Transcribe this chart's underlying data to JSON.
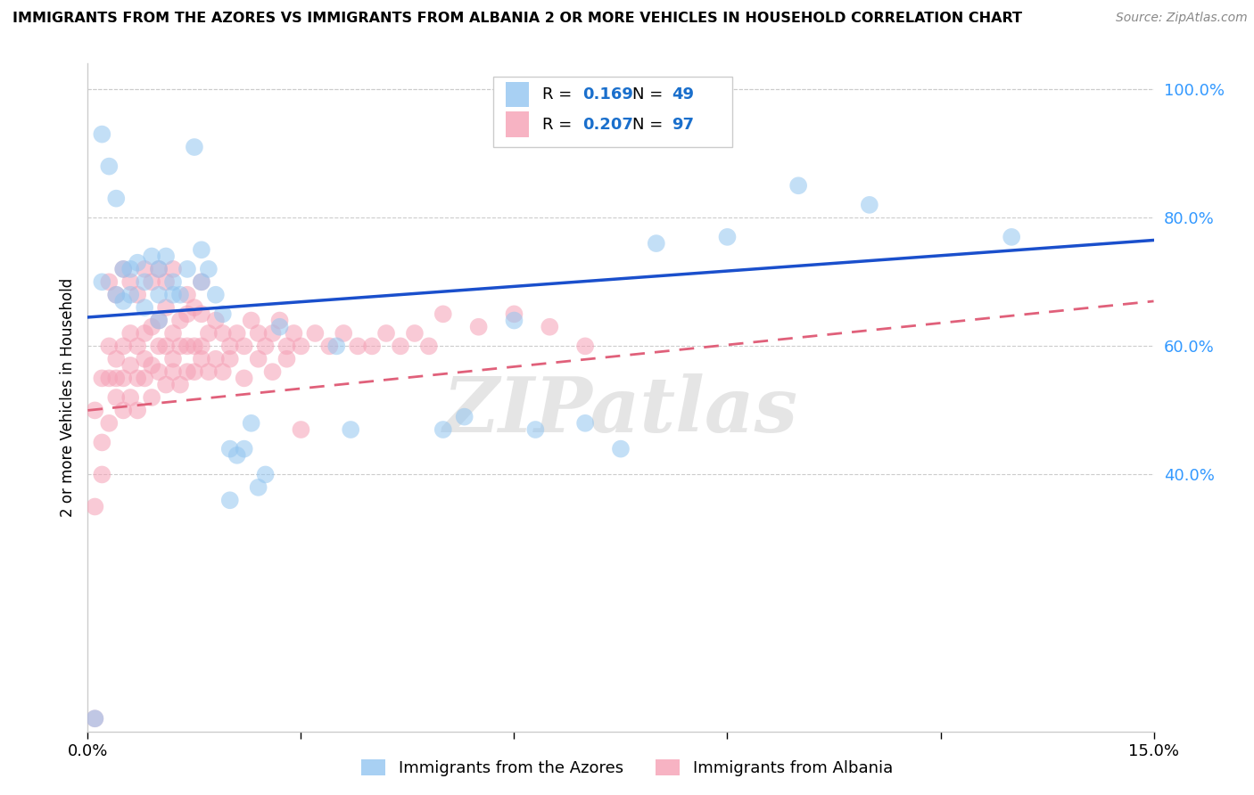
{
  "title": "IMMIGRANTS FROM THE AZORES VS IMMIGRANTS FROM ALBANIA 2 OR MORE VEHICLES IN HOUSEHOLD CORRELATION CHART",
  "source": "Source: ZipAtlas.com",
  "ylabel": "2 or more Vehicles in Household",
  "xmin": 0.0,
  "xmax": 0.15,
  "ymin": 0.0,
  "ymax": 1.0,
  "ytick_vals": [
    0.4,
    0.6,
    0.8,
    1.0
  ],
  "ytick_labels": [
    "40.0%",
    "60.0%",
    "80.0%",
    "100.0%"
  ],
  "xtick_vals": [
    0.0,
    0.03,
    0.06,
    0.09,
    0.12,
    0.15
  ],
  "xtick_labels": [
    "0.0%",
    "",
    "",
    "",
    "",
    "15.0%"
  ],
  "legend_azores": "Immigrants from the Azores",
  "legend_albania": "Immigrants from Albania",
  "R_azores": 0.169,
  "N_azores": 49,
  "R_albania": 0.207,
  "N_albania": 97,
  "color_azores": "#92C5F0",
  "color_albania": "#F5A0B5",
  "color_azores_line": "#1A4FCC",
  "color_albania_line": "#E0607A",
  "watermark": "ZIPatlas",
  "azores_x": [
    0.001,
    0.002,
    0.003,
    0.004,
    0.005,
    0.005,
    0.006,
    0.007,
    0.008,
    0.009,
    0.01,
    0.01,
    0.011,
    0.012,
    0.013,
    0.014,
    0.015,
    0.016,
    0.017,
    0.018,
    0.019,
    0.02,
    0.021,
    0.022,
    0.023,
    0.024,
    0.025,
    0.027,
    0.035,
    0.037,
    0.05,
    0.053,
    0.06,
    0.063,
    0.07,
    0.075,
    0.08,
    0.09,
    0.1,
    0.11,
    0.13,
    0.002,
    0.004,
    0.006,
    0.008,
    0.01,
    0.012,
    0.016,
    0.02
  ],
  "azores_y": [
    0.02,
    0.93,
    0.88,
    0.83,
    0.67,
    0.72,
    0.68,
    0.73,
    0.7,
    0.74,
    0.68,
    0.72,
    0.74,
    0.7,
    0.68,
    0.72,
    0.91,
    0.75,
    0.72,
    0.68,
    0.65,
    0.44,
    0.43,
    0.44,
    0.48,
    0.38,
    0.4,
    0.63,
    0.6,
    0.47,
    0.47,
    0.49,
    0.64,
    0.47,
    0.48,
    0.44,
    0.76,
    0.77,
    0.85,
    0.82,
    0.77,
    0.7,
    0.68,
    0.72,
    0.66,
    0.64,
    0.68,
    0.7,
    0.36
  ],
  "albania_x": [
    0.001,
    0.001,
    0.002,
    0.002,
    0.003,
    0.003,
    0.004,
    0.004,
    0.005,
    0.005,
    0.006,
    0.006,
    0.007,
    0.007,
    0.008,
    0.008,
    0.009,
    0.009,
    0.01,
    0.01,
    0.011,
    0.011,
    0.012,
    0.012,
    0.013,
    0.013,
    0.014,
    0.014,
    0.015,
    0.015,
    0.016,
    0.016,
    0.017,
    0.018,
    0.019,
    0.02,
    0.021,
    0.022,
    0.023,
    0.024,
    0.025,
    0.026,
    0.027,
    0.028,
    0.029,
    0.03,
    0.032,
    0.034,
    0.036,
    0.038,
    0.04,
    0.042,
    0.044,
    0.046,
    0.048,
    0.05,
    0.055,
    0.06,
    0.065,
    0.07,
    0.001,
    0.002,
    0.003,
    0.004,
    0.005,
    0.006,
    0.007,
    0.008,
    0.009,
    0.01,
    0.011,
    0.012,
    0.013,
    0.014,
    0.015,
    0.016,
    0.017,
    0.018,
    0.019,
    0.02,
    0.022,
    0.024,
    0.026,
    0.028,
    0.003,
    0.004,
    0.005,
    0.006,
    0.007,
    0.008,
    0.009,
    0.01,
    0.011,
    0.012,
    0.014,
    0.016,
    0.03
  ],
  "albania_y": [
    0.02,
    0.5,
    0.55,
    0.45,
    0.6,
    0.55,
    0.58,
    0.52,
    0.6,
    0.55,
    0.62,
    0.57,
    0.6,
    0.55,
    0.62,
    0.58,
    0.63,
    0.57,
    0.64,
    0.6,
    0.66,
    0.6,
    0.62,
    0.58,
    0.64,
    0.6,
    0.65,
    0.6,
    0.66,
    0.6,
    0.65,
    0.6,
    0.62,
    0.64,
    0.62,
    0.6,
    0.62,
    0.6,
    0.64,
    0.62,
    0.6,
    0.62,
    0.64,
    0.6,
    0.62,
    0.6,
    0.62,
    0.6,
    0.62,
    0.6,
    0.6,
    0.62,
    0.6,
    0.62,
    0.6,
    0.65,
    0.63,
    0.65,
    0.63,
    0.6,
    0.35,
    0.4,
    0.48,
    0.55,
    0.5,
    0.52,
    0.5,
    0.55,
    0.52,
    0.56,
    0.54,
    0.56,
    0.54,
    0.56,
    0.56,
    0.58,
    0.56,
    0.58,
    0.56,
    0.58,
    0.55,
    0.58,
    0.56,
    0.58,
    0.7,
    0.68,
    0.72,
    0.7,
    0.68,
    0.72,
    0.7,
    0.72,
    0.7,
    0.72,
    0.68,
    0.7,
    0.47
  ]
}
